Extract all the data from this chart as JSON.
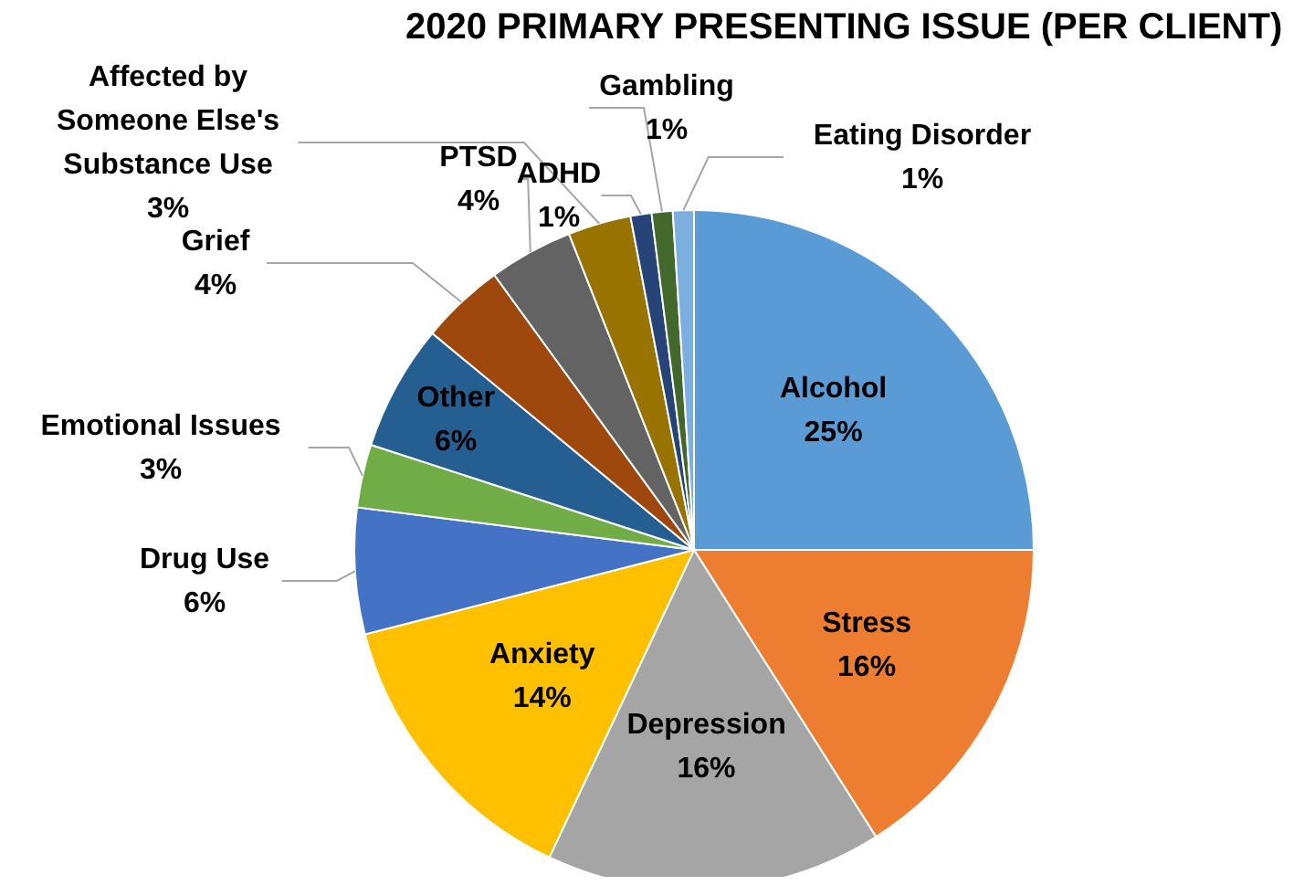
{
  "chart_data": {
    "type": "pie",
    "title": "2020 PRIMARY PRESENTING ISSUE (PER CLIENT)",
    "categories": [
      "Alcohol",
      "Stress",
      "Depression",
      "Anxiety",
      "Drug Use",
      "Emotional Issues",
      "Other",
      "Grief",
      "PTSD",
      "Affected by Someone Else's Substance Use",
      "ADHD",
      "Gambling",
      "Eating Disorder"
    ],
    "values": [
      25,
      16,
      16,
      14,
      6,
      3,
      6,
      4,
      4,
      3,
      1,
      1,
      1
    ],
    "value_labels": [
      "25%",
      "16%",
      "16%",
      "14%",
      "6%",
      "3%",
      "6%",
      "4%",
      "4%",
      "3%",
      "1%",
      "1%",
      "1%"
    ],
    "colors": [
      "#5b9bd5",
      "#ed7d31",
      "#a5a5a5",
      "#ffc000",
      "#4472c4",
      "#70ad47",
      "#255e91",
      "#9e480e",
      "#636363",
      "#997300",
      "#264478",
      "#43682b",
      "#7cafdd"
    ],
    "legend": false
  }
}
